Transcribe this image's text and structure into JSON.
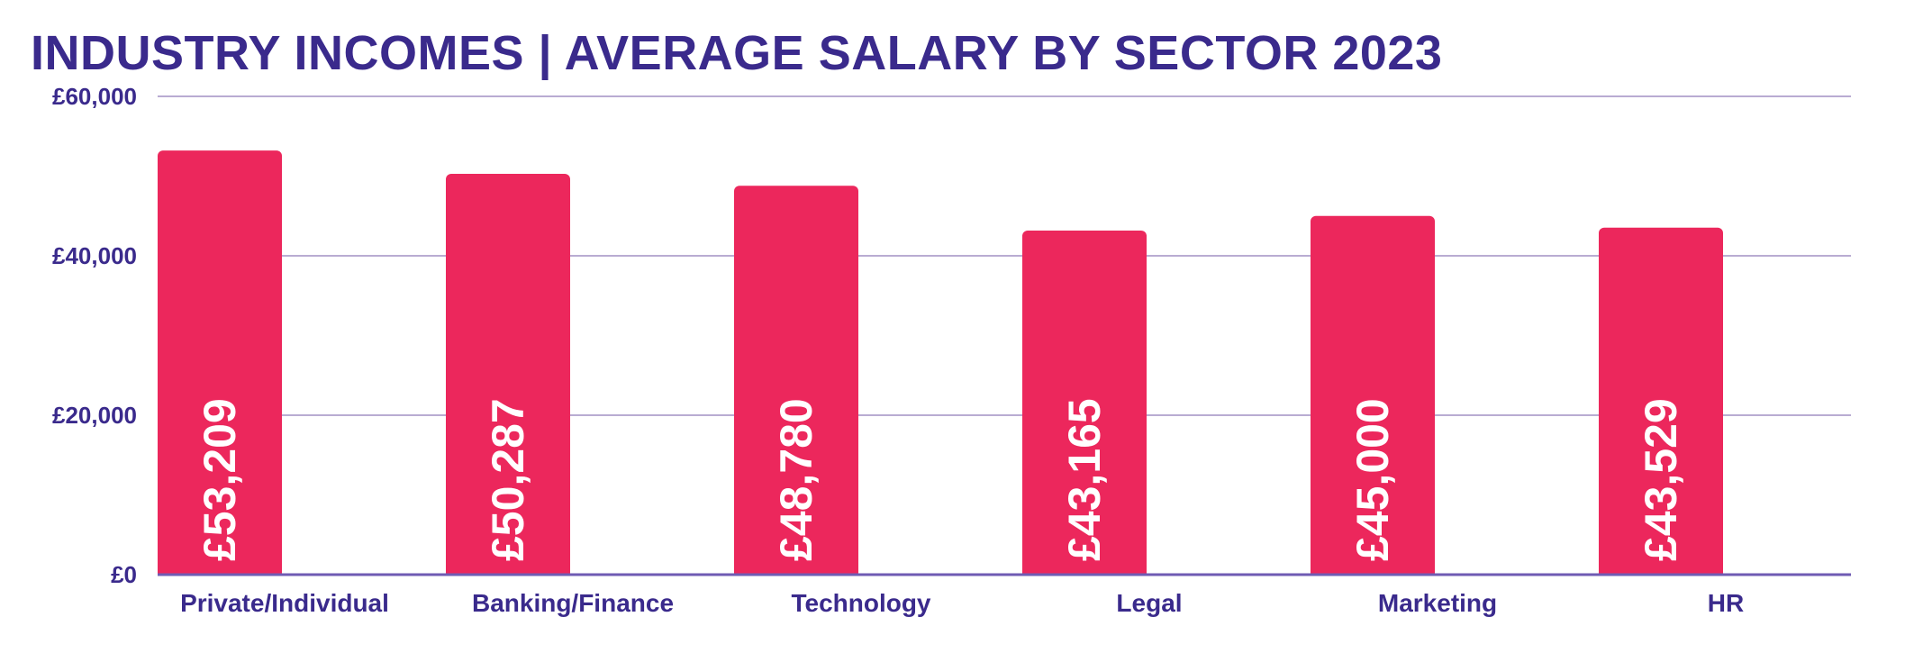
{
  "chart_data": {
    "type": "bar",
    "title": "INDUSTRY INCOMES | AVERAGE SALARY BY SECTOR 2023",
    "xlabel": "",
    "ylabel": "",
    "ylim": [
      0,
      60000
    ],
    "yticks": [
      0,
      20000,
      40000,
      60000
    ],
    "ytick_labels": [
      "£0",
      "£20,000",
      "£40,000",
      "£60,000"
    ],
    "categories": [
      "Private/Individual",
      "Banking/Finance",
      "Technology",
      "Legal",
      "Marketing",
      "HR"
    ],
    "values": [
      53209,
      50287,
      48780,
      43165,
      45000,
      43529
    ],
    "value_labels": [
      "£53,209",
      "£50,287",
      "£48,780",
      "£43,165",
      "£45,000",
      "£43,529"
    ],
    "grid": true,
    "legend": "none"
  },
  "colors": {
    "title": "#3a2a8c",
    "axis_text": "#3a2a8c",
    "bar": "#ec275c",
    "bar_label": "#ffffff",
    "grid": "#b9acd2",
    "baseline": "#6f5bb3"
  }
}
